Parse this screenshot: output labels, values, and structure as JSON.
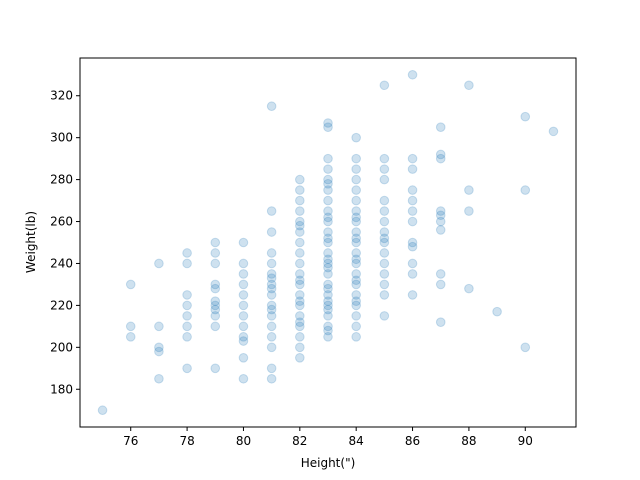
{
  "chart_data": {
    "type": "scatter",
    "title": "",
    "xlabel": "Height(\")",
    "ylabel": "Weight(lb)",
    "xlim": [
      74.2,
      91.8
    ],
    "ylim": [
      162,
      338
    ],
    "xticks": [
      76,
      78,
      80,
      82,
      84,
      86,
      88,
      90
    ],
    "yticks": [
      180,
      200,
      220,
      240,
      260,
      280,
      300,
      320
    ],
    "grid": false,
    "legend": "none",
    "color": "#1f77b4",
    "alpha": 0.22,
    "points": [
      [
        75,
        170
      ],
      [
        76,
        205
      ],
      [
        76,
        210
      ],
      [
        76,
        230
      ],
      [
        77,
        185
      ],
      [
        77,
        198
      ],
      [
        77,
        200
      ],
      [
        77,
        210
      ],
      [
        77,
        240
      ],
      [
        78,
        190
      ],
      [
        78,
        205
      ],
      [
        78,
        210
      ],
      [
        78,
        215
      ],
      [
        78,
        220
      ],
      [
        78,
        225
      ],
      [
        78,
        240
      ],
      [
        78,
        245
      ],
      [
        79,
        190
      ],
      [
        79,
        210
      ],
      [
        79,
        215
      ],
      [
        79,
        218
      ],
      [
        79,
        220
      ],
      [
        79,
        222
      ],
      [
        79,
        228
      ],
      [
        79,
        230
      ],
      [
        79,
        240
      ],
      [
        79,
        245
      ],
      [
        79,
        250
      ],
      [
        80,
        185
      ],
      [
        80,
        195
      ],
      [
        80,
        203
      ],
      [
        80,
        205
      ],
      [
        80,
        210
      ],
      [
        80,
        215
      ],
      [
        80,
        220
      ],
      [
        80,
        225
      ],
      [
        80,
        230
      ],
      [
        80,
        235
      ],
      [
        80,
        240
      ],
      [
        80,
        250
      ],
      [
        81,
        185
      ],
      [
        81,
        190
      ],
      [
        81,
        200
      ],
      [
        81,
        205
      ],
      [
        81,
        210
      ],
      [
        81,
        215
      ],
      [
        81,
        218
      ],
      [
        81,
        220
      ],
      [
        81,
        225
      ],
      [
        81,
        228
      ],
      [
        81,
        230
      ],
      [
        81,
        233
      ],
      [
        81,
        235
      ],
      [
        81,
        240
      ],
      [
        81,
        245
      ],
      [
        81,
        255
      ],
      [
        81,
        265
      ],
      [
        81,
        315
      ],
      [
        82,
        195
      ],
      [
        82,
        200
      ],
      [
        82,
        205
      ],
      [
        82,
        210
      ],
      [
        82,
        212
      ],
      [
        82,
        215
      ],
      [
        82,
        220
      ],
      [
        82,
        222
      ],
      [
        82,
        225
      ],
      [
        82,
        230
      ],
      [
        82,
        232
      ],
      [
        82,
        235
      ],
      [
        82,
        240
      ],
      [
        82,
        245
      ],
      [
        82,
        250
      ],
      [
        82,
        255
      ],
      [
        82,
        258
      ],
      [
        82,
        260
      ],
      [
        82,
        265
      ],
      [
        82,
        270
      ],
      [
        82,
        275
      ],
      [
        82,
        280
      ],
      [
        83,
        205
      ],
      [
        83,
        208
      ],
      [
        83,
        210
      ],
      [
        83,
        215
      ],
      [
        83,
        218
      ],
      [
        83,
        220
      ],
      [
        83,
        222
      ],
      [
        83,
        225
      ],
      [
        83,
        228
      ],
      [
        83,
        230
      ],
      [
        83,
        235
      ],
      [
        83,
        238
      ],
      [
        83,
        240
      ],
      [
        83,
        242
      ],
      [
        83,
        245
      ],
      [
        83,
        250
      ],
      [
        83,
        252
      ],
      [
        83,
        255
      ],
      [
        83,
        260
      ],
      [
        83,
        262
      ],
      [
        83,
        265
      ],
      [
        83,
        270
      ],
      [
        83,
        275
      ],
      [
        83,
        278
      ],
      [
        83,
        280
      ],
      [
        83,
        285
      ],
      [
        83,
        290
      ],
      [
        83,
        305
      ],
      [
        83,
        307
      ],
      [
        84,
        205
      ],
      [
        84,
        210
      ],
      [
        84,
        215
      ],
      [
        84,
        220
      ],
      [
        84,
        222
      ],
      [
        84,
        225
      ],
      [
        84,
        230
      ],
      [
        84,
        232
      ],
      [
        84,
        235
      ],
      [
        84,
        240
      ],
      [
        84,
        242
      ],
      [
        84,
        245
      ],
      [
        84,
        250
      ],
      [
        84,
        252
      ],
      [
        84,
        255
      ],
      [
        84,
        260
      ],
      [
        84,
        262
      ],
      [
        84,
        265
      ],
      [
        84,
        270
      ],
      [
        84,
        275
      ],
      [
        84,
        280
      ],
      [
        84,
        285
      ],
      [
        84,
        290
      ],
      [
        84,
        300
      ],
      [
        85,
        215
      ],
      [
        85,
        225
      ],
      [
        85,
        230
      ],
      [
        85,
        235
      ],
      [
        85,
        240
      ],
      [
        85,
        245
      ],
      [
        85,
        250
      ],
      [
        85,
        252
      ],
      [
        85,
        255
      ],
      [
        85,
        260
      ],
      [
        85,
        265
      ],
      [
        85,
        270
      ],
      [
        85,
        280
      ],
      [
        85,
        285
      ],
      [
        85,
        290
      ],
      [
        85,
        325
      ],
      [
        86,
        225
      ],
      [
        86,
        235
      ],
      [
        86,
        240
      ],
      [
        86,
        248
      ],
      [
        86,
        250
      ],
      [
        86,
        260
      ],
      [
        86,
        265
      ],
      [
        86,
        270
      ],
      [
        86,
        275
      ],
      [
        86,
        285
      ],
      [
        86,
        290
      ],
      [
        86,
        330
      ],
      [
        87,
        212
      ],
      [
        87,
        230
      ],
      [
        87,
        235
      ],
      [
        87,
        256
      ],
      [
        87,
        260
      ],
      [
        87,
        263
      ],
      [
        87,
        265
      ],
      [
        87,
        290
      ],
      [
        87,
        292
      ],
      [
        87,
        305
      ],
      [
        88,
        228
      ],
      [
        88,
        265
      ],
      [
        88,
        275
      ],
      [
        88,
        325
      ],
      [
        89,
        217
      ],
      [
        90,
        200
      ],
      [
        90,
        275
      ],
      [
        90,
        310
      ],
      [
        91,
        303
      ]
    ]
  }
}
